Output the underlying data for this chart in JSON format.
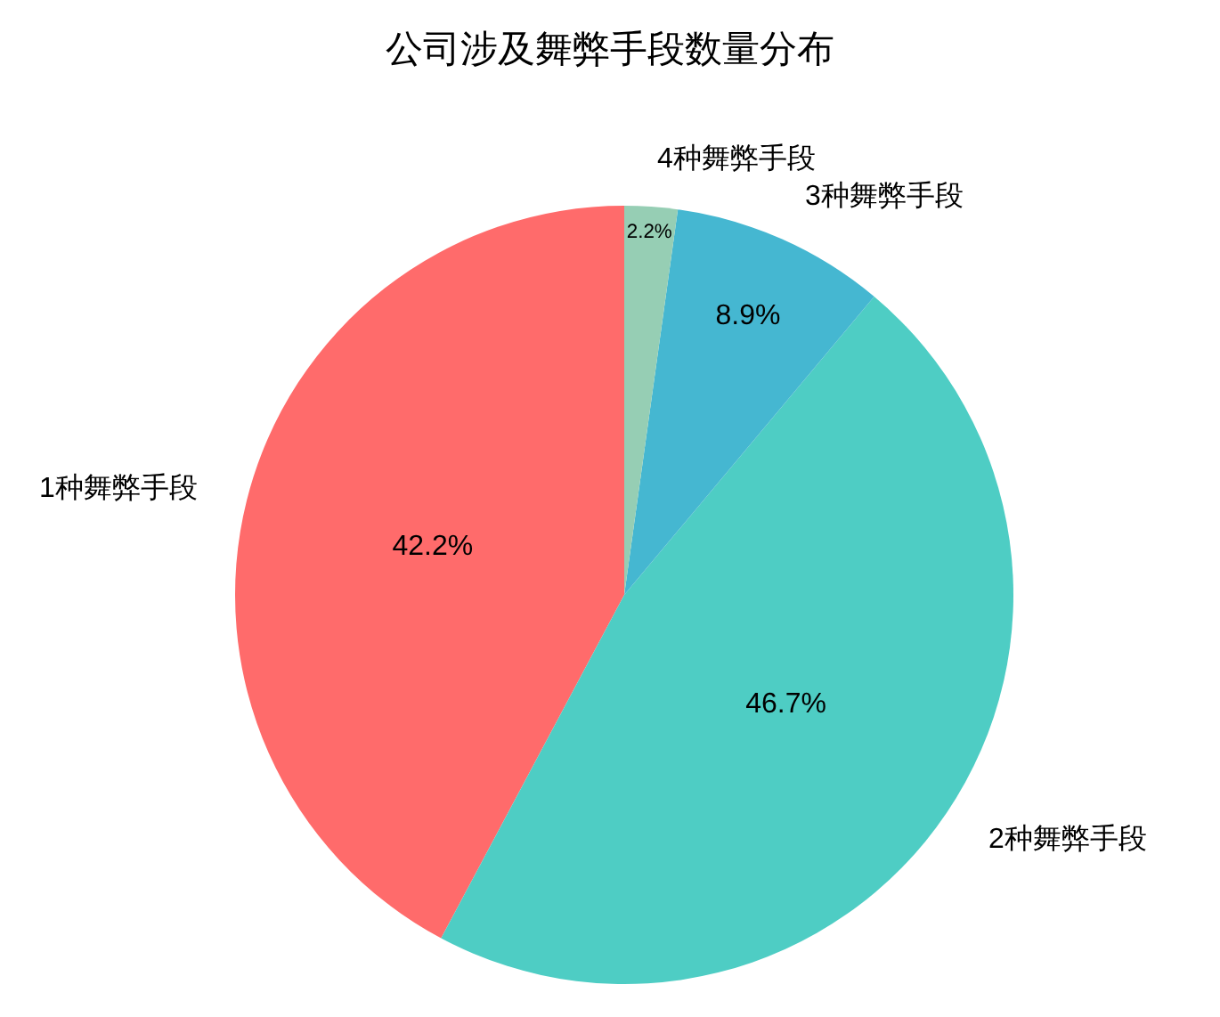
{
  "chart_data": {
    "type": "pie",
    "title": "公司涉及舞弊手段数量分布",
    "categories": [
      "1种舞弊手段",
      "2种舞弊手段",
      "3种舞弊手段",
      "4种舞弊手段"
    ],
    "values": [
      42.2,
      46.7,
      8.9,
      2.2
    ],
    "colors": [
      "#ff6b6b",
      "#4ecdc4",
      "#45b7d1",
      "#96ceb4"
    ],
    "value_labels": [
      "42.2%",
      "46.7%",
      "8.9%",
      "2.2%"
    ]
  }
}
